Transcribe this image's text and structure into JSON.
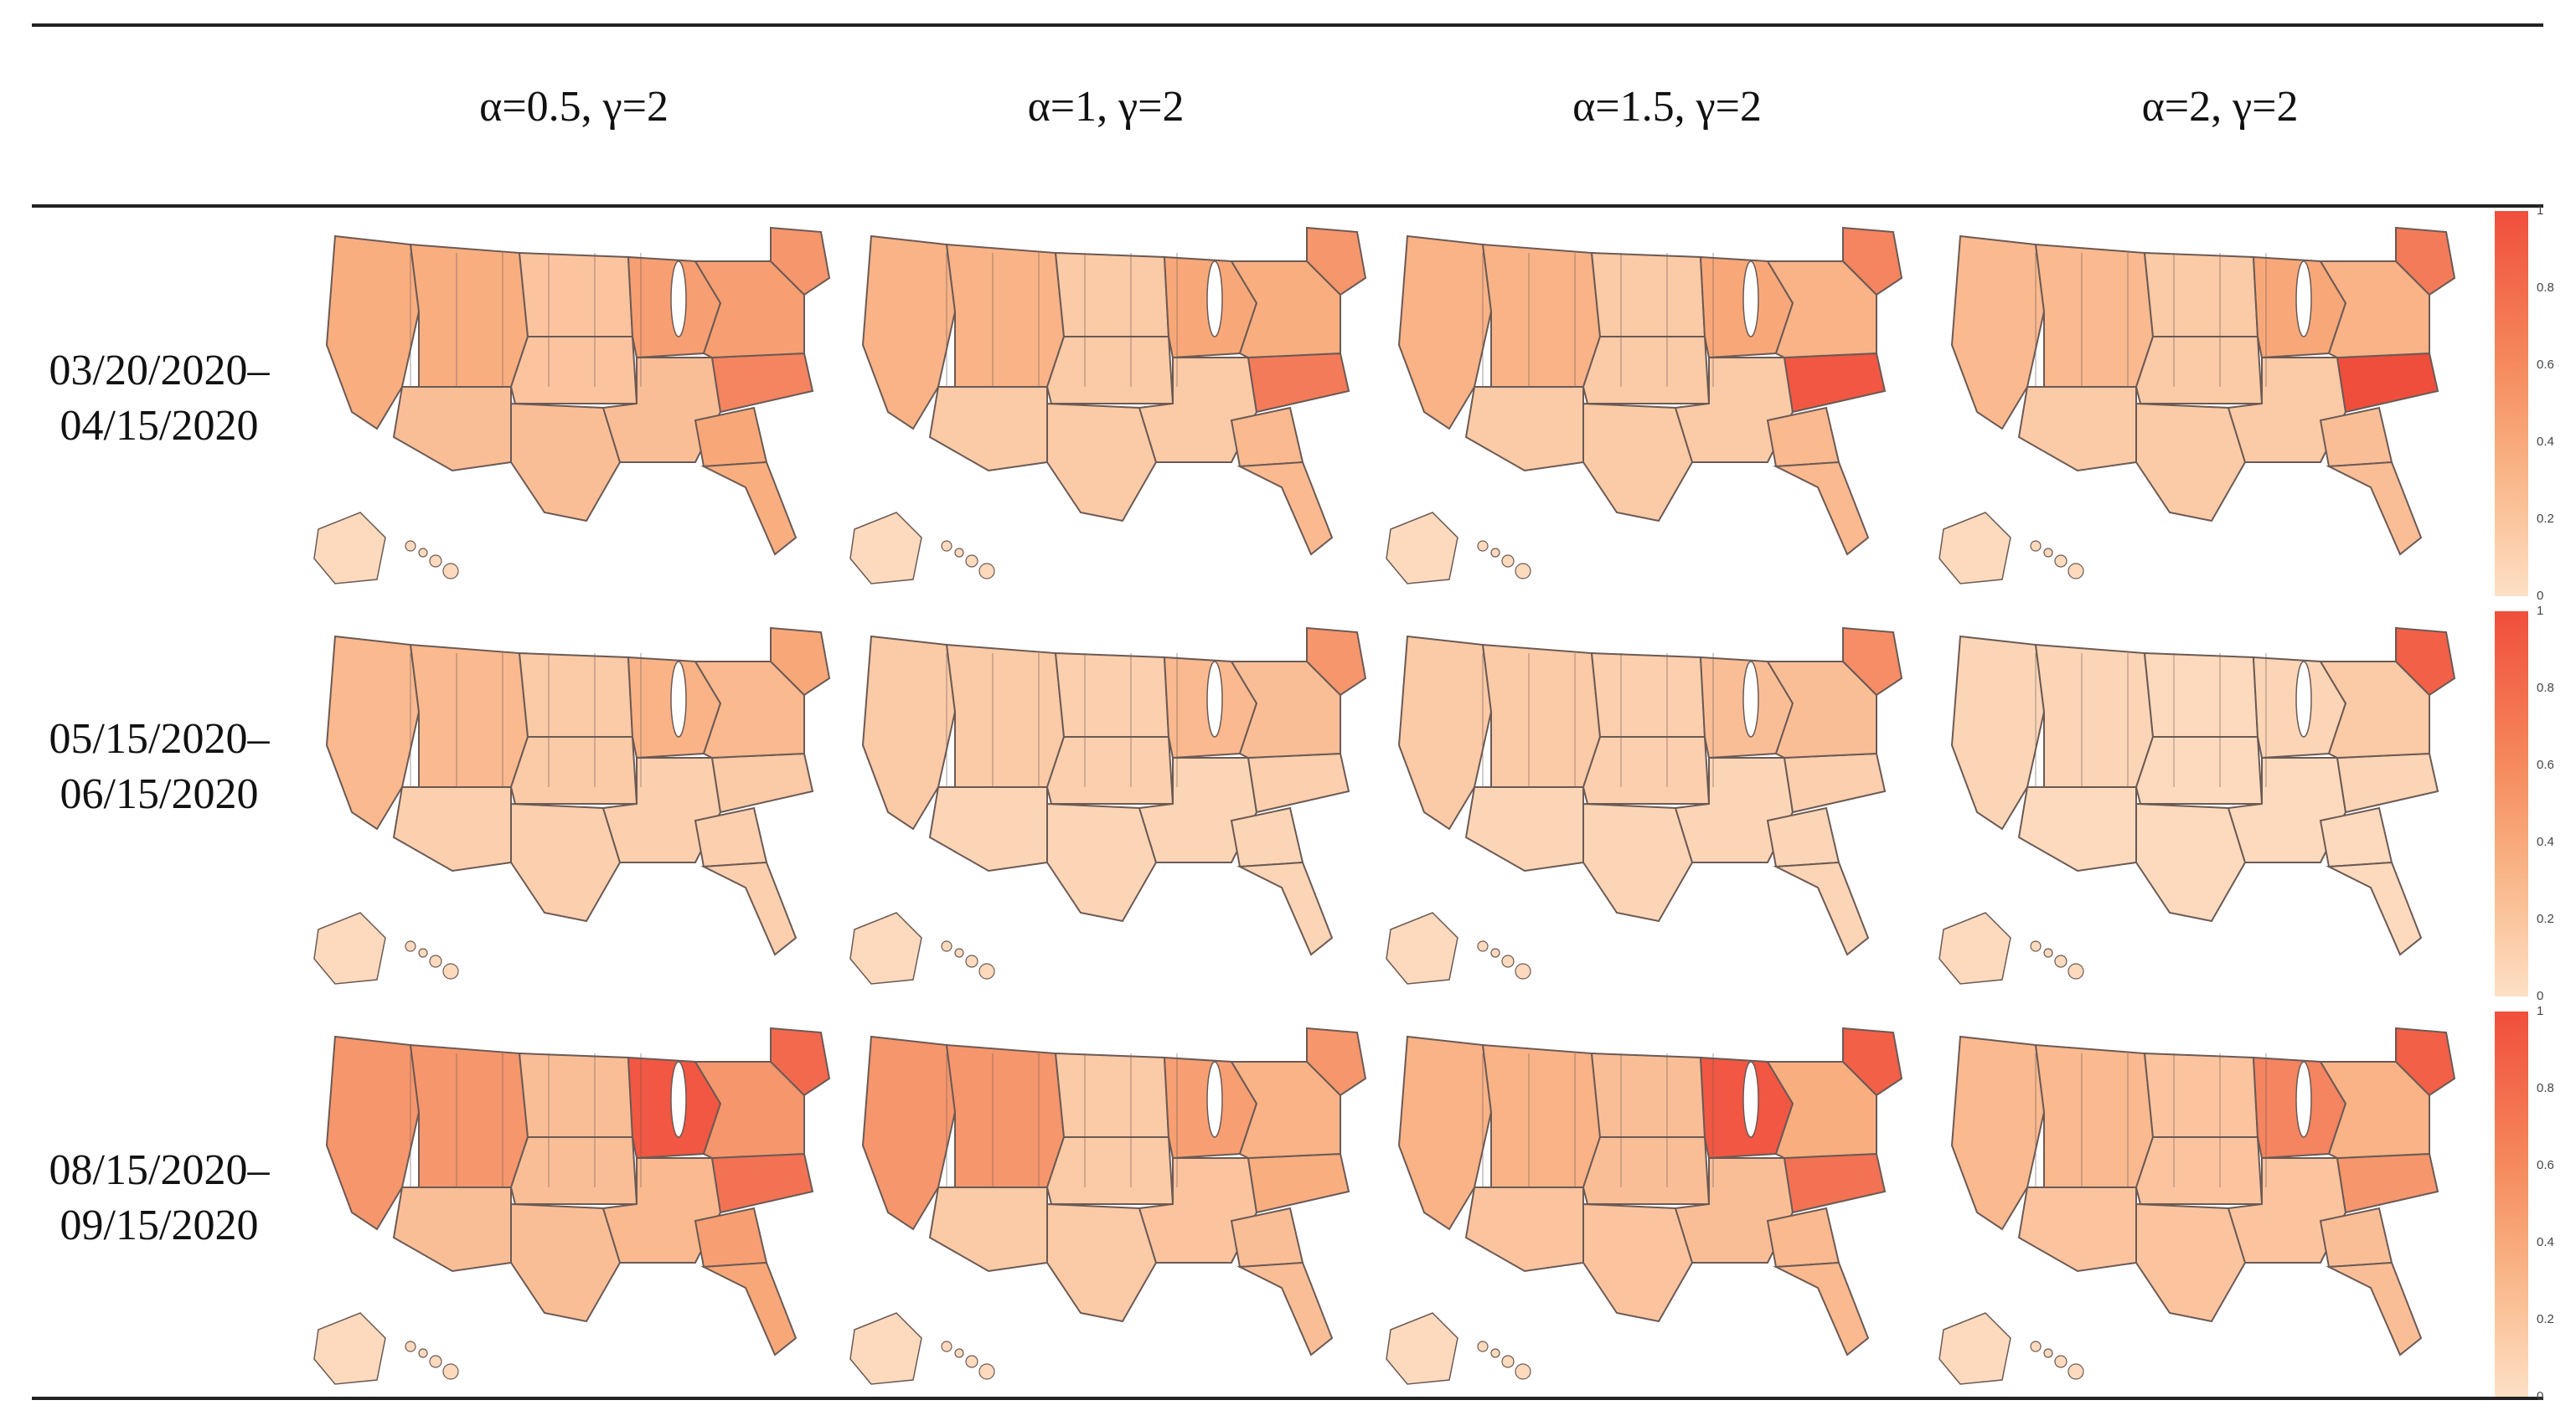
{
  "columns": [
    {
      "label": "α=0.5, γ=2"
    },
    {
      "label": "α=1, γ=2"
    },
    {
      "label": "α=1.5, γ=2"
    },
    {
      "label": "α=2, γ=2"
    }
  ],
  "rows": [
    {
      "start": "03/20/2020–",
      "end": "04/15/2020"
    },
    {
      "start": "05/15/2020–",
      "end": "06/15/2020"
    },
    {
      "start": "08/15/2020–",
      "end": "09/15/2020"
    }
  ],
  "colorbar": {
    "ticks": [
      "1",
      "0.8",
      "0.6",
      "0.4",
      "0.2",
      "0"
    ],
    "min": 0,
    "max": 1
  },
  "colors": {
    "low": "#fde0c5",
    "mid": "#f8a878",
    "high": "#f04e3c",
    "border": "#6b5a55"
  },
  "map_values": [
    [
      {
        "west": 0.45,
        "southwest": 0.3,
        "plains": 0.25,
        "great_lakes": 0.55,
        "midsouth": 0.3,
        "nc": 0.7,
        "ga": 0.5,
        "fl": 0.45,
        "northeast": 0.55,
        "vt": 0.6
      },
      {
        "west": 0.4,
        "southwest": 0.2,
        "plains": 0.2,
        "great_lakes": 0.5,
        "midsouth": 0.2,
        "nc": 0.75,
        "ga": 0.35,
        "fl": 0.35,
        "northeast": 0.45,
        "vt": 0.6
      },
      {
        "west": 0.4,
        "southwest": 0.2,
        "plains": 0.2,
        "great_lakes": 0.5,
        "midsouth": 0.2,
        "nc": 0.95,
        "ga": 0.35,
        "fl": 0.35,
        "northeast": 0.4,
        "vt": 0.7
      },
      {
        "west": 0.35,
        "southwest": 0.2,
        "plains": 0.2,
        "great_lakes": 0.5,
        "midsouth": 0.2,
        "nc": 1.0,
        "ga": 0.3,
        "fl": 0.3,
        "northeast": 0.4,
        "vt": 0.75
      }
    ],
    [
      {
        "west": 0.35,
        "southwest": 0.15,
        "plains": 0.2,
        "great_lakes": 0.4,
        "midsouth": 0.15,
        "nc": 0.2,
        "ga": 0.15,
        "fl": 0.15,
        "northeast": 0.35,
        "vt": 0.5
      },
      {
        "west": 0.2,
        "southwest": 0.1,
        "plains": 0.15,
        "great_lakes": 0.35,
        "midsouth": 0.1,
        "nc": 0.15,
        "ga": 0.1,
        "fl": 0.1,
        "northeast": 0.3,
        "vt": 0.6
      },
      {
        "west": 0.2,
        "southwest": 0.1,
        "plains": 0.15,
        "great_lakes": 0.3,
        "midsouth": 0.1,
        "nc": 0.15,
        "ga": 0.1,
        "fl": 0.1,
        "northeast": 0.3,
        "vt": 0.65
      },
      {
        "west": 0.1,
        "southwest": 0.05,
        "plains": 0.05,
        "great_lakes": 0.1,
        "midsouth": 0.05,
        "nc": 0.1,
        "ga": 0.05,
        "fl": 0.05,
        "northeast": 0.2,
        "vt": 0.9
      }
    ],
    [
      {
        "west": 0.6,
        "southwest": 0.3,
        "plains": 0.3,
        "great_lakes": 0.95,
        "midsouth": 0.35,
        "nc": 0.8,
        "ga": 0.55,
        "fl": 0.5,
        "northeast": 0.6,
        "vt": 0.85
      },
      {
        "west": 0.6,
        "southwest": 0.2,
        "plains": 0.2,
        "great_lakes": 0.55,
        "midsouth": 0.25,
        "nc": 0.45,
        "ga": 0.3,
        "fl": 0.3,
        "northeast": 0.4,
        "vt": 0.6
      },
      {
        "west": 0.4,
        "southwest": 0.25,
        "plains": 0.3,
        "great_lakes": 0.95,
        "midsouth": 0.3,
        "nc": 0.8,
        "ga": 0.35,
        "fl": 0.35,
        "northeast": 0.45,
        "vt": 0.9
      },
      {
        "west": 0.35,
        "southwest": 0.25,
        "plains": 0.25,
        "great_lakes": 0.7,
        "midsouth": 0.25,
        "nc": 0.6,
        "ga": 0.3,
        "fl": 0.3,
        "northeast": 0.4,
        "vt": 0.9
      }
    ]
  ]
}
